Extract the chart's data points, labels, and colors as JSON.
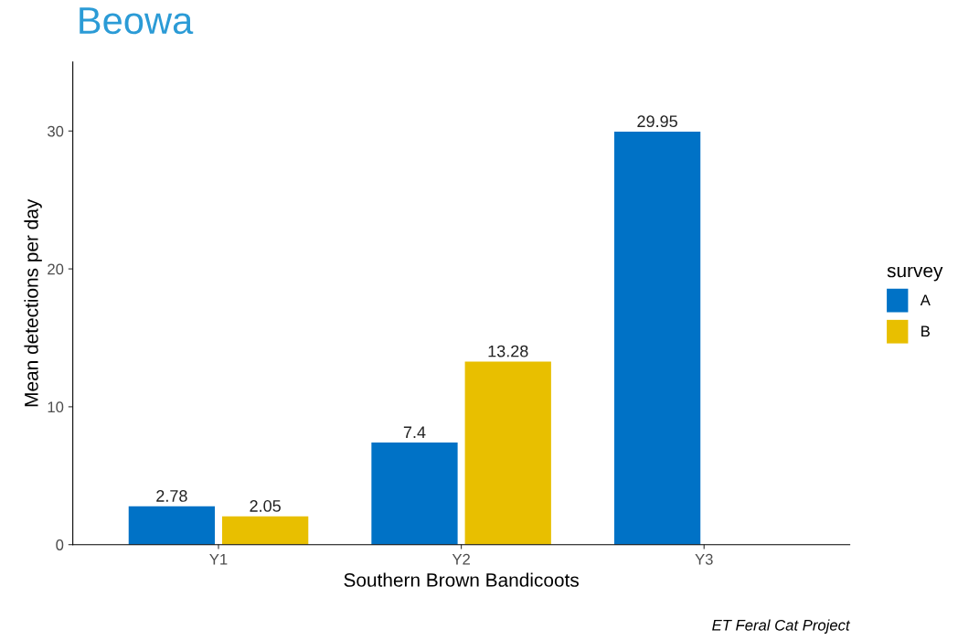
{
  "chart_data": {
    "type": "bar",
    "title": "Beowa",
    "xlabel": "Southern Brown Bandicoots",
    "ylabel": "Mean detections per day",
    "categories": [
      "Y1",
      "Y2",
      "Y3"
    ],
    "series": [
      {
        "name": "A",
        "color": "#0072c6",
        "values": [
          2.78,
          7.4,
          29.95
        ]
      },
      {
        "name": "B",
        "color": "#e8bf00",
        "values": [
          2.05,
          13.28,
          null
        ]
      }
    ],
    "ylim": [
      0,
      35
    ],
    "yticks": [
      0,
      10,
      20,
      30
    ],
    "data_labels": true,
    "grid": false,
    "legend": "right",
    "legend_title": "survey",
    "annotations": [
      "ET Feral Cat Project"
    ]
  }
}
